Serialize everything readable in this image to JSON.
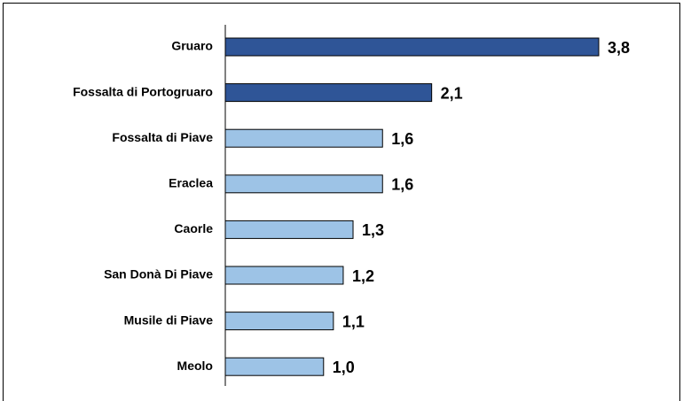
{
  "chart_data": {
    "type": "bar",
    "orientation": "horizontal",
    "categories": [
      "Gruaro",
      "Fossalta di Portogruaro",
      "Fossalta di Piave",
      "Eraclea",
      "Caorle",
      "San Donà Di Piave",
      "Musile di Piave",
      "Meolo"
    ],
    "values": [
      3.8,
      2.1,
      1.6,
      1.6,
      1.3,
      1.2,
      1.1,
      1.0
    ],
    "value_labels": [
      "3,8",
      "2,1",
      "1,6",
      "1,6",
      "1,3",
      "1,2",
      "1,1",
      "1,0"
    ],
    "colors": [
      "#2f5597",
      "#2f5597",
      "#9dc3e6",
      "#9dc3e6",
      "#9dc3e6",
      "#9dc3e6",
      "#9dc3e6",
      "#9dc3e6"
    ]
  }
}
